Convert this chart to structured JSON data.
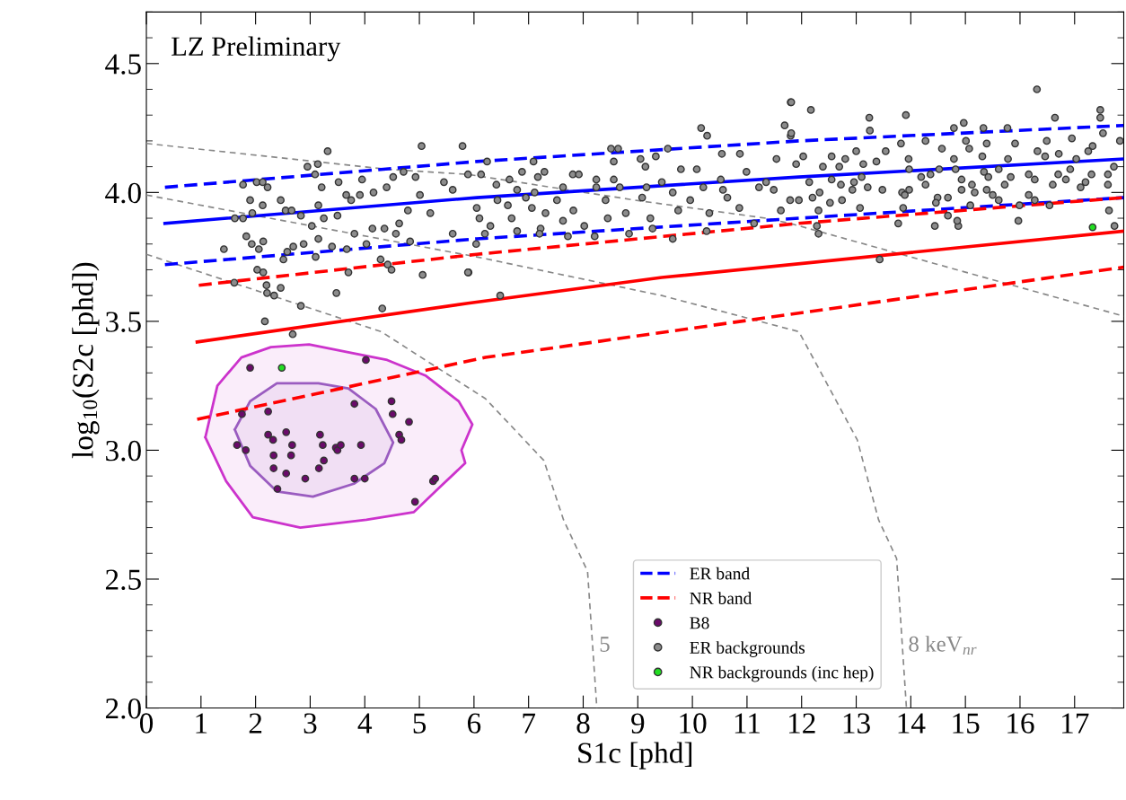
{
  "chart_data": {
    "type": "scatter",
    "xlabel": "S1c [phd]",
    "ylabel": "log$_{10}$(S2c [phd])",
    "annotations": [
      "LZ Preliminary",
      {
        "text": "5",
        "x": 8.2,
        "y": 2.24
      },
      {
        "text": "8 keV$_{nr}$",
        "x": 13.86,
        "y": 2.24
      }
    ],
    "xlim": [
      0,
      17.9
    ],
    "ylim": [
      2.0,
      4.7
    ],
    "xticks": [
      0,
      1,
      2,
      3,
      4,
      5,
      6,
      7,
      8,
      9,
      10,
      11,
      12,
      13,
      14,
      15,
      16,
      17
    ],
    "yticks": [
      {
        "value": 2,
        "label": "2.0"
      },
      2.5,
      {
        "value": 3,
        "label": "3.0"
      },
      3.5,
      {
        "value": 4,
        "label": "4.0"
      },
      4.5
    ],
    "grid": false,
    "legend": "bottom",
    "series": [
      {
        "type": "area",
        "color": "#cc33cc",
        "marker": "none",
        "x": [
          1.08,
          1.3,
          1.74,
          2.28,
          2.98,
          3.7,
          4.41,
          5.11,
          5.72,
          5.97,
          5.77,
          5.84,
          5.34,
          4.9,
          4.03,
          2.82,
          1.95,
          1.46,
          1.08
        ],
        "values": [
          3.05,
          3.25,
          3.36,
          3.4,
          3.41,
          3.38,
          3.35,
          3.29,
          3.19,
          3.1,
          3.0,
          2.95,
          2.85,
          2.76,
          2.73,
          2.7,
          2.74,
          2.88,
          3.05
        ]
      },
      {
        "type": "area",
        "color": "#9a5cc0",
        "marker": "none",
        "x": [
          1.62,
          1.9,
          2.39,
          3.15,
          3.7,
          4.2,
          4.52,
          4.36,
          3.8,
          3.05,
          2.39,
          1.9,
          1.62
        ],
        "values": [
          3.08,
          3.19,
          3.26,
          3.26,
          3.24,
          3.16,
          3.03,
          2.95,
          2.87,
          2.82,
          2.84,
          2.94,
          3.08
        ]
      },
      {
        "type": "line",
        "color": "#888888",
        "line_style": "dashed",
        "marker": "none",
        "x": [
          0.0,
          4.41,
          5.89,
          8.95,
          11.35,
          11.79,
          17.9
        ],
        "values": [
          4.19,
          4.09,
          4.07,
          3.97,
          3.9,
          3.88,
          3.52
        ]
      },
      {
        "type": "line",
        "color": "#888888",
        "line_style": "dashed",
        "marker": "none",
        "x": [
          0.0,
          6.05,
          9.44,
          11.95,
          13.02,
          13.41,
          13.74,
          13.92
        ],
        "values": [
          3.99,
          3.75,
          3.6,
          3.46,
          3.04,
          2.73,
          2.58,
          2.0
        ]
      },
      {
        "type": "line",
        "color": "#888888",
        "line_style": "dashed",
        "marker": "none",
        "x": [
          0.0,
          4.3,
          6.21,
          7.28,
          7.64,
          8.08,
          8.25
        ],
        "values": [
          3.76,
          3.46,
          3.2,
          2.96,
          2.73,
          2.53,
          2.0
        ]
      },
      {
        "type": "line",
        "name": "ER band",
        "color": "#0000ff",
        "line_style": "dashed",
        "marker": "none",
        "x": [
          0.34,
          6.05,
          11.95,
          17.9
        ],
        "values": [
          4.02,
          4.12,
          4.2,
          4.26
        ]
      },
      {
        "type": "line",
        "color": "#0000ff",
        "line_style": "solid",
        "marker": "none",
        "x": [
          0.34,
          6.05,
          11.95,
          17.9
        ],
        "values": [
          3.88,
          3.98,
          4.06,
          4.13
        ]
      },
      {
        "type": "line",
        "color": "#0000ff",
        "line_style": "dashed",
        "marker": "none",
        "x": [
          0.34,
          6.05,
          11.95,
          17.9
        ],
        "values": [
          3.72,
          3.82,
          3.9,
          3.98
        ]
      },
      {
        "type": "line",
        "name": "NR band",
        "color": "#ff0000",
        "line_style": "dashed",
        "marker": "none",
        "x": [
          0.96,
          6.05,
          11.95,
          17.9
        ],
        "values": [
          3.64,
          3.76,
          3.88,
          3.98
        ]
      },
      {
        "type": "line",
        "color": "#ff0000",
        "line_style": "solid",
        "marker": "none",
        "x": [
          0.93,
          5.89,
          9.44,
          17.9
        ],
        "values": [
          3.42,
          3.57,
          3.67,
          3.85
        ]
      },
      {
        "type": "line",
        "color": "#ff0000",
        "line_style": "dashed",
        "marker": "none",
        "x": [
          0.93,
          6.21,
          17.9
        ],
        "values": [
          3.12,
          3.36,
          3.71
        ]
      },
      {
        "name": "B8",
        "color": "#6a0a6a",
        "marker": "circle",
        "x": [
          1.9,
          4.02,
          3.81,
          4.49,
          4.51,
          4.81,
          4.63,
          4.67,
          1.75,
          2.23,
          1.66,
          1.82,
          2.23,
          2.32,
          2.56,
          2.67,
          2.33,
          2.65,
          2.33,
          2.56,
          2.4,
          2.91,
          3.18,
          3.23,
          3.25,
          3.16,
          3.47,
          3.5,
          3.56,
          3.93,
          3.81,
          4.0,
          5.25,
          5.29,
          4.92
        ],
        "values": [
          3.32,
          3.35,
          3.18,
          3.19,
          3.14,
          3.11,
          3.06,
          3.04,
          3.14,
          3.15,
          3.02,
          3.0,
          3.06,
          3.04,
          3.07,
          3.02,
          2.98,
          2.98,
          2.93,
          2.91,
          2.85,
          2.89,
          3.06,
          3.02,
          2.96,
          2.93,
          3.01,
          3.0,
          3.02,
          3.02,
          2.89,
          2.89,
          2.88,
          2.89,
          2.8
        ]
      },
      {
        "name": "ER backgrounds",
        "color": "#8c8c8c",
        "marker": "circle",
        "x": [
          3.32,
          5.04,
          5.79,
          2.95,
          3.14,
          3.09,
          1.77,
          2.02,
          2.13,
          2.22,
          3.21,
          3.52,
          3.95,
          1.9,
          2.13,
          2.46,
          1.62,
          1.77,
          1.94,
          2.55,
          2.66,
          2.83,
          3.03,
          3.15,
          3.25,
          3.5,
          3.66,
          3.75,
          3.91,
          4.16,
          4.4,
          4.52,
          4.71,
          4.93,
          4.79,
          5.01,
          5.2,
          5.45,
          5.61,
          5.89,
          1.83,
          1.93,
          2.06,
          2.14,
          1.42,
          2.51,
          2.58,
          2.69,
          2.88,
          3.1,
          3.15,
          3.4,
          3.67,
          4.03,
          4.29,
          4.42,
          4.49,
          2.03,
          2.14,
          1.61,
          2.2,
          2.21,
          2.34,
          2.46,
          2.83,
          3.48,
          3.7,
          4.32,
          5.06,
          5.9,
          2.17,
          3.81,
          4.36,
          4.57,
          4.83,
          5.61,
          4.14,
          4.63,
          2.68,
          11.8,
          10.16,
          10.27,
          11.69,
          11.8,
          8.51,
          8.64,
          9.55,
          9.33,
          10.54,
          10.87,
          6.24,
          7.09,
          9.05,
          11.54,
          8.56,
          6.88,
          7.17,
          7.29,
          7.81,
          7.92,
          9.14,
          9.79,
          10.08,
          10.99,
          11.35,
          6.13,
          6.65,
          8.24,
          8.56,
          9.44,
          10.52,
          6.41,
          6.79,
          7.63,
          8.24,
          8.67,
          9.16,
          10.2,
          11.22,
          11.49,
          7.11,
          9.08,
          9.64,
          10.56,
          6.43,
          6.95,
          7.52,
          8.41,
          9.96,
          10.64,
          11.79,
          6.05,
          6.62,
          7.06,
          7.31,
          7.82,
          8.45,
          8.78,
          9.23,
          9.74,
          10.31,
          10.86,
          11.62,
          6.1,
          6.69,
          7.63,
          7.22,
          8.02,
          6.3,
          6.79,
          6.2,
          7.2,
          7.72,
          8.21,
          8.84,
          9.27,
          10.26,
          11.13,
          5.89,
          6.48,
          6.04,
          9.64,
          16.31,
          12.17,
          11.81,
          13.24,
          13.91,
          16.64,
          17.47,
          17.47,
          13.25,
          14.97,
          14.79,
          15.33,
          15.77,
          17.52,
          11.81,
          14.27,
          15.01,
          16.49,
          17.83,
          16.95,
          13.82,
          14.57,
          15.07,
          15.39,
          15.91,
          17.33,
          13.0,
          13.54,
          12.55,
          16.32,
          16.71,
          17.25,
          12.03,
          13.37,
          12.8,
          13.96,
          14.79,
          15.31,
          15.78,
          16.46,
          17.03,
          17.72,
          11.9,
          12.39,
          12.69,
          13.13,
          13.1,
          13.97,
          14.36,
          14.52,
          14.82,
          15.34,
          15.61,
          16.16,
          16.7,
          16.92,
          17.31,
          17.61,
          12.55,
          12.96,
          14.19,
          14.93,
          15.42,
          15.83,
          16.27,
          16.84,
          17.2,
          12.14,
          12.72,
          14.27,
          15.12,
          15.72,
          16.6,
          17.61,
          13.21,
          13.48,
          13.84,
          14.93,
          12.93,
          17.11,
          12.33,
          13.97,
          15.39,
          11.95,
          12.2,
          12.52,
          12.74,
          13.89,
          14.49,
          14.68,
          15.17,
          15.5,
          16.16,
          16.27,
          12.31,
          13.07,
          13.86,
          14.46,
          15.09,
          15.61,
          15.99,
          16.54,
          17.63,
          12.28,
          12.31,
          13.77,
          14.44,
          14.87,
          14.85,
          14.68,
          15.97,
          17.73,
          13.43
        ],
        "values": [
          4.16,
          4.18,
          4.18,
          4.1,
          4.11,
          4.07,
          4.03,
          4.04,
          4.04,
          4.02,
          4.02,
          4.04,
          4.05,
          3.97,
          3.95,
          3.97,
          3.9,
          3.9,
          3.92,
          3.93,
          3.93,
          3.91,
          3.87,
          3.95,
          3.9,
          3.91,
          3.99,
          3.97,
          3.99,
          4.0,
          4.02,
          4.06,
          4.08,
          4.06,
          3.93,
          3.99,
          3.92,
          4.04,
          4.01,
          4.07,
          3.83,
          3.8,
          3.78,
          3.81,
          3.78,
          3.74,
          3.77,
          3.79,
          3.8,
          3.75,
          3.82,
          3.79,
          3.78,
          3.8,
          3.74,
          3.72,
          3.7,
          3.7,
          3.69,
          3.65,
          3.64,
          3.61,
          3.6,
          3.63,
          3.56,
          3.61,
          3.69,
          3.55,
          3.68,
          3.69,
          3.5,
          3.84,
          3.86,
          3.84,
          3.81,
          3.84,
          3.86,
          3.88,
          3.45,
          4.35,
          4.25,
          4.22,
          4.26,
          4.22,
          4.17,
          4.17,
          4.17,
          4.14,
          4.15,
          4.15,
          4.12,
          4.12,
          4.13,
          4.13,
          4.12,
          4.08,
          4.06,
          4.08,
          4.07,
          4.07,
          4.1,
          4.09,
          4.09,
          4.08,
          4.04,
          4.07,
          4.05,
          4.05,
          4.05,
          4.04,
          4.05,
          4.03,
          4.01,
          4.02,
          4.02,
          4.02,
          4.02,
          4.02,
          4.02,
          4.01,
          4.0,
          3.98,
          4.0,
          4.01,
          3.97,
          3.98,
          3.97,
          3.97,
          3.97,
          3.98,
          3.97,
          3.94,
          3.95,
          3.94,
          3.92,
          3.93,
          3.9,
          3.92,
          3.9,
          3.93,
          3.92,
          3.94,
          3.93,
          3.9,
          3.9,
          3.89,
          3.86,
          3.87,
          3.87,
          3.85,
          3.84,
          3.84,
          3.83,
          3.83,
          3.84,
          3.86,
          3.85,
          3.88,
          3.69,
          3.6,
          3.8,
          3.82,
          4.4,
          4.32,
          4.35,
          4.29,
          4.3,
          4.29,
          4.32,
          4.29,
          4.24,
          4.27,
          4.25,
          4.25,
          4.25,
          4.23,
          4.23,
          4.2,
          4.2,
          4.2,
          4.2,
          4.21,
          4.19,
          4.17,
          4.17,
          4.19,
          4.19,
          4.18,
          4.16,
          4.16,
          4.14,
          4.16,
          4.15,
          4.16,
          4.14,
          4.12,
          4.13,
          4.13,
          4.13,
          4.14,
          4.13,
          4.14,
          4.13,
          4.1,
          4.11,
          4.1,
          4.1,
          4.11,
          4.06,
          4.09,
          4.07,
          4.09,
          4.09,
          4.08,
          4.09,
          4.07,
          4.07,
          4.09,
          4.07,
          4.07,
          4.05,
          4.04,
          4.06,
          4.05,
          4.06,
          4.06,
          4.05,
          4.05,
          4.04,
          4.04,
          4.03,
          4.03,
          4.03,
          4.03,
          4.03,
          4.03,
          4.02,
          4.01,
          4.0,
          4.01,
          4.01,
          4.02,
          4.0,
          4.01,
          4.01,
          3.97,
          3.98,
          3.96,
          3.97,
          3.99,
          3.98,
          3.98,
          4.0,
          3.99,
          3.99,
          3.97,
          3.93,
          3.94,
          3.94,
          3.96,
          3.95,
          3.97,
          3.95,
          3.95,
          3.93,
          3.87,
          3.84,
          3.88,
          3.87,
          3.87,
          3.89,
          3.91,
          3.89,
          3.87,
          3.74
        ]
      },
      {
        "name": "NR backgrounds (inc hep)",
        "color": "#22dd22",
        "marker": "circle",
        "x": [
          2.48,
          17.33
        ],
        "values": [
          3.32,
          3.865
        ]
      }
    ]
  }
}
